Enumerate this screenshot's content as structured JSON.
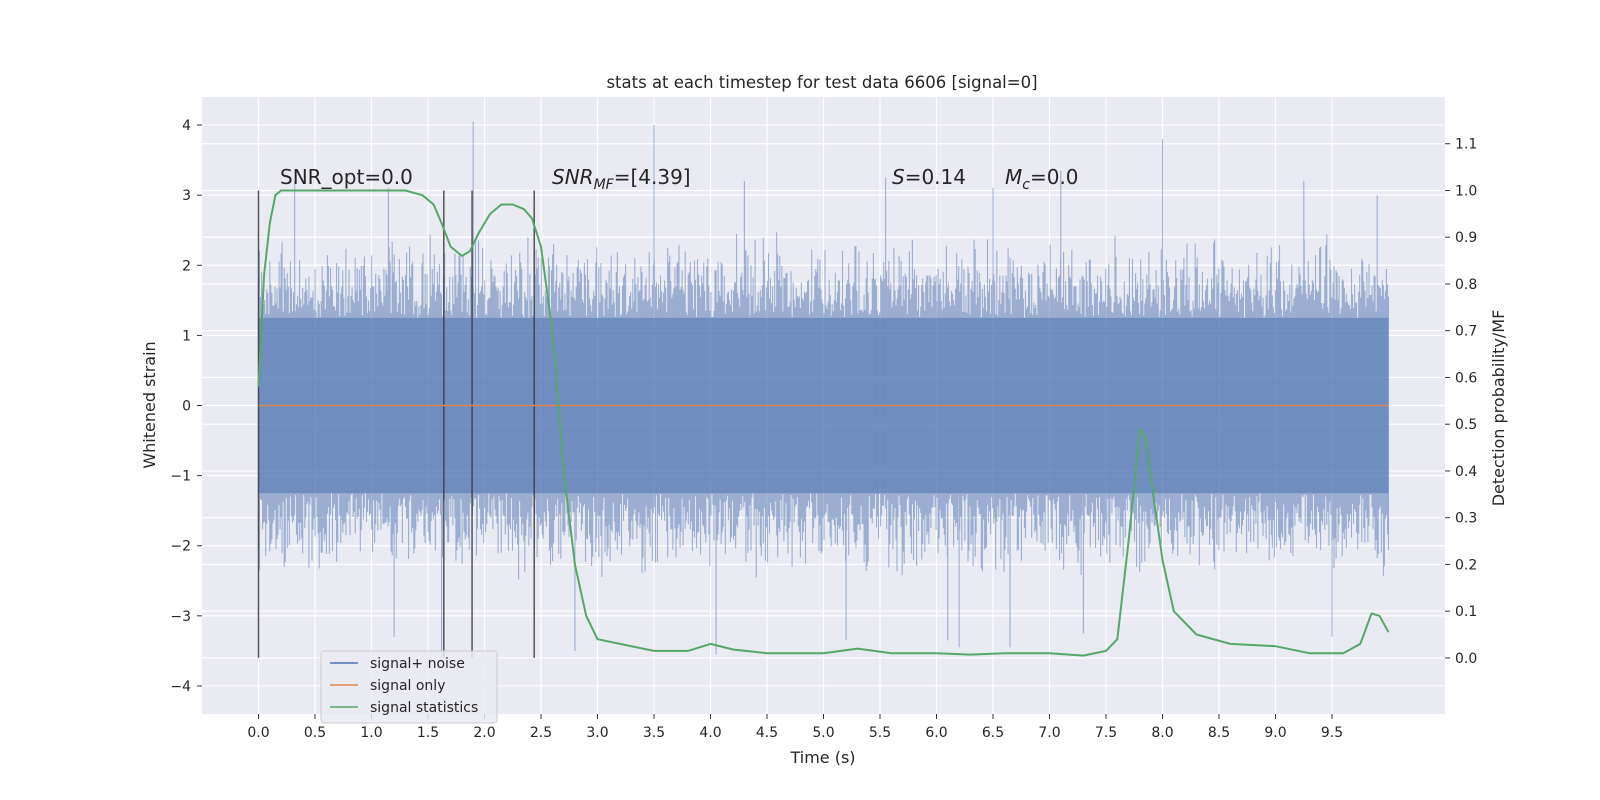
{
  "chart_data": {
    "type": "line",
    "title": "stats at each timestep for test data 6606 [signal=0]",
    "xlabel": "Time (s)",
    "ylabel": "Whitened strain",
    "y2label": "Detection probability/MF",
    "xlim": [
      -0.5,
      10.5
    ],
    "ylim": [
      -4.4,
      4.4
    ],
    "y2lim": [
      -0.12,
      1.2
    ],
    "x_ticks": [
      "0.0",
      "0.5",
      "1.0",
      "1.5",
      "2.0",
      "2.5",
      "3.0",
      "3.5",
      "4.0",
      "4.5",
      "5.0",
      "5.5",
      "6.0",
      "6.5",
      "7.0",
      "7.5",
      "8.0",
      "8.5",
      "9.0",
      "9.5"
    ],
    "y_ticks": [
      "4",
      "3",
      "2",
      "1",
      "0",
      "−1",
      "−2",
      "−3",
      "−4"
    ],
    "y2_ticks": [
      "1.1",
      "1.0",
      "0.9",
      "0.8",
      "0.7",
      "0.6",
      "0.5",
      "0.4",
      "0.3",
      "0.2",
      "0.1",
      "0.0"
    ],
    "grid": true,
    "legend_position": "lower-left",
    "annotations": {
      "snr_opt": "SNR_opt=0.0",
      "snr_mf_main": "SNR",
      "snr_mf_sub": "MF",
      "snr_mf_rest": "=[4.39]",
      "s_var": "S",
      "s_rest": "=0.14",
      "mc_var": "M",
      "mc_sub": "c",
      "mc_rest": "=0.0"
    },
    "vertical_markers": [
      0.0,
      1.64,
      1.89,
      2.44
    ],
    "series": [
      {
        "name": "signal+ noise",
        "axis": "left",
        "color": "#4c72b0",
        "envelope": {
          "core_low": -1.25,
          "core_high": 1.25,
          "typical_max": 2.3,
          "typical_min": -2.3,
          "peaks_x": [
            0.32,
            1.15,
            1.9,
            3.5,
            4.3,
            5.55,
            6.5,
            7.1,
            8.0,
            9.25,
            9.9
          ],
          "peaks_y": [
            3.2,
            3.1,
            4.05,
            4.0,
            3.2,
            3.25,
            3.1,
            3.35,
            3.8,
            3.2,
            3.0
          ],
          "troughs_x": [
            1.2,
            1.62,
            2.8,
            4.05,
            5.2,
            6.1,
            6.2,
            6.65,
            7.3,
            9.5
          ],
          "troughs_y": [
            -3.3,
            -3.65,
            -3.5,
            -3.55,
            -3.35,
            -3.35,
            -3.45,
            -3.45,
            -3.25,
            -3.3
          ],
          "x_start": 0.0,
          "x_end": 10.0
        }
      },
      {
        "name": "signal only",
        "axis": "left",
        "color": "#dd8452",
        "x": [
          0.0,
          10.0
        ],
        "y": [
          0.0,
          0.0
        ]
      },
      {
        "name": "signal statistics",
        "axis": "right",
        "color": "#55a868",
        "x": [
          0.0,
          0.05,
          0.1,
          0.15,
          0.2,
          0.3,
          0.5,
          1.0,
          1.3,
          1.45,
          1.55,
          1.62,
          1.7,
          1.8,
          1.87,
          1.95,
          2.05,
          2.15,
          2.25,
          2.35,
          2.42,
          2.5,
          2.6,
          2.7,
          2.8,
          2.9,
          3.0,
          3.2,
          3.5,
          3.8,
          4.0,
          4.2,
          4.5,
          5.0,
          5.3,
          5.6,
          6.0,
          6.3,
          6.6,
          7.0,
          7.3,
          7.5,
          7.6,
          7.7,
          7.8,
          7.85,
          7.9,
          8.0,
          8.1,
          8.3,
          8.6,
          9.0,
          9.3,
          9.6,
          9.75,
          9.85,
          9.92,
          10.0
        ],
        "y": [
          0.58,
          0.82,
          0.93,
          0.99,
          1.0,
          1.0,
          1.0,
          1.0,
          1.0,
          0.99,
          0.97,
          0.93,
          0.88,
          0.86,
          0.87,
          0.91,
          0.95,
          0.97,
          0.97,
          0.96,
          0.94,
          0.88,
          0.7,
          0.4,
          0.2,
          0.09,
          0.04,
          0.03,
          0.015,
          0.015,
          0.03,
          0.018,
          0.01,
          0.01,
          0.02,
          0.01,
          0.01,
          0.007,
          0.01,
          0.01,
          0.005,
          0.015,
          0.04,
          0.25,
          0.49,
          0.47,
          0.38,
          0.21,
          0.1,
          0.05,
          0.03,
          0.025,
          0.01,
          0.01,
          0.03,
          0.095,
          0.09,
          0.055
        ]
      }
    ]
  }
}
